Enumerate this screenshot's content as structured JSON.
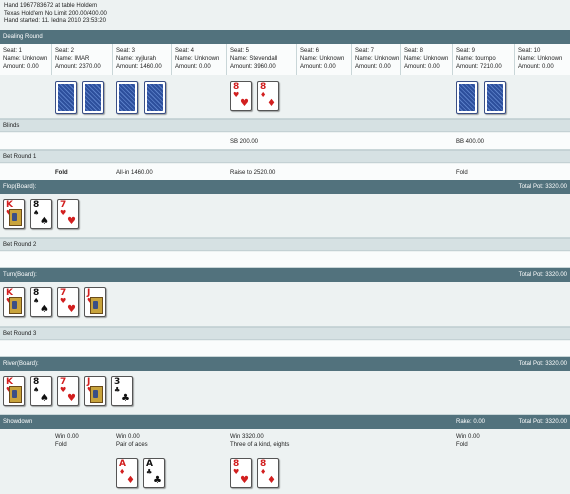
{
  "header": {
    "line1": "Hand 1967783672 at table Holdem",
    "line2": "Texas Hold'em No Limit 200.00/400.00",
    "line3": "Hand started: 11. ledna 2010 23:53:20"
  },
  "dealing": {
    "title": "Dealing Round",
    "seats": [
      {
        "seat": "Seat: 1",
        "name": "Name: Unknown",
        "amount": "Amount: 0.00"
      },
      {
        "seat": "Seat: 2",
        "name": "Name: IMAR",
        "amount": "Amount: 2370.00"
      },
      {
        "seat": "Seat: 3",
        "name": "Name: xyjlurah",
        "amount": "Amount: 1460.00"
      },
      {
        "seat": "Seat: 4",
        "name": "Name: Unknown",
        "amount": "Amount: 0.00"
      },
      {
        "seat": "Seat: 5",
        "name": "Name: Stevendall",
        "amount": "Amount: 3960.00"
      },
      {
        "seat": "Seat: 6",
        "name": "Name: Unknown",
        "amount": "Amount: 0.00"
      },
      {
        "seat": "Seat: 7",
        "name": "Name: Unknown",
        "amount": "Amount: 0.00"
      },
      {
        "seat": "Seat: 8",
        "name": "Name: Unknown",
        "amount": "Amount: 0.00"
      },
      {
        "seat": "Seat: 9",
        "name": "Name: tournpo",
        "amount": "Amount: 7210.00"
      },
      {
        "seat": "Seat: 10",
        "name": "Name: Unknown",
        "amount": "Amount: 0.00"
      }
    ],
    "hole_cards": [
      {
        "rank": "8",
        "suit": "♥",
        "color": "#d21f1f"
      },
      {
        "rank": "8",
        "suit": "♦",
        "color": "#d21f1f"
      }
    ]
  },
  "blinds": {
    "title": "Blinds",
    "sb": "SB 200.00",
    "bb": "BB 400.00"
  },
  "bet1": {
    "title": "Bet Round 1",
    "a1": "Fold",
    "a2": "All-in 1460.00",
    "a3": "Raise to 2520.00",
    "a4": "Fold"
  },
  "flop": {
    "title": "Flop(Board):",
    "pot": "Total Pot: 3320.00",
    "cards": [
      {
        "rank": "K",
        "suit": "♥",
        "color": "#d21f1f"
      },
      {
        "rank": "8",
        "suit": "♠",
        "color": "#111111"
      },
      {
        "rank": "7",
        "suit": "♥",
        "color": "#d21f1f"
      }
    ]
  },
  "bet2": {
    "title": "Bet Round 2"
  },
  "turn": {
    "title": "Turn(Board):",
    "pot": "Total Pot: 3320.00",
    "cards": [
      {
        "rank": "K",
        "suit": "♥",
        "color": "#d21f1f"
      },
      {
        "rank": "8",
        "suit": "♠",
        "color": "#111111"
      },
      {
        "rank": "7",
        "suit": "♥",
        "color": "#d21f1f"
      },
      {
        "rank": "J",
        "suit": "♥",
        "color": "#d21f1f"
      }
    ]
  },
  "bet3": {
    "title": "Bet Round 3"
  },
  "river": {
    "title": "River(Board):",
    "pot": "Total Pot: 3320.00",
    "cards": [
      {
        "rank": "K",
        "suit": "♥",
        "color": "#d21f1f"
      },
      {
        "rank": "8",
        "suit": "♠",
        "color": "#111111"
      },
      {
        "rank": "7",
        "suit": "♥",
        "color": "#d21f1f"
      },
      {
        "rank": "J",
        "suit": "♥",
        "color": "#d21f1f"
      },
      {
        "rank": "3",
        "suit": "♣",
        "color": "#111111"
      }
    ]
  },
  "showdown": {
    "title": "Showdown",
    "rake": "Rake: 0.00",
    "pot": "Total Pot: 3320.00",
    "p2_win": "Win 0.00",
    "p2_res": "Fold",
    "p3_win": "Win 0.00",
    "p3_res": "Pair of aces",
    "p5_win": "Win 3320.00",
    "p5_res": "Three of a kind, eights",
    "p9_win": "Win 0.00",
    "p9_res": "Fold",
    "p3_cards": [
      {
        "rank": "A",
        "suit": "♦",
        "color": "#d21f1f"
      },
      {
        "rank": "A",
        "suit": "♣",
        "color": "#111111"
      }
    ],
    "p5_cards": [
      {
        "rank": "8",
        "suit": "♥",
        "color": "#d21f1f"
      },
      {
        "rank": "8",
        "suit": "♦",
        "color": "#d21f1f"
      }
    ]
  }
}
